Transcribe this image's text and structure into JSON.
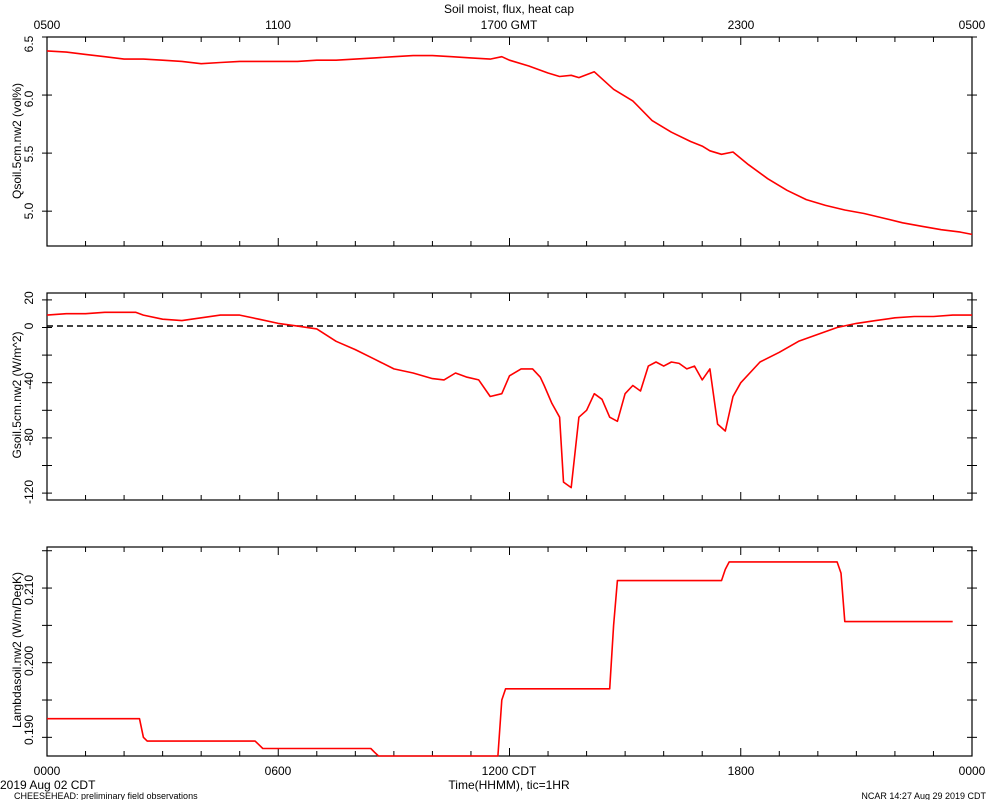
{
  "title": "Soil moist, flux, heat cap",
  "top_axis": {
    "tick_labels": [
      "0500",
      "1100",
      "1700 GMT",
      "2300",
      "0500"
    ]
  },
  "bottom_axis": {
    "tick_labels": [
      "0000",
      "0600",
      "1200 CDT",
      "1800",
      "0000"
    ],
    "xlabel": "Time(HHMM), tic=1HR"
  },
  "footer": {
    "date": "2019 Aug 02 CDT",
    "project": "CHEESEHEAD: preliminary field observations",
    "credit": "NCAR 14:27 Aug 29 2019 CDT"
  },
  "colors": {
    "series": "#ff0000",
    "axes": "#000000",
    "zero_line": "#000000"
  },
  "chart_data": [
    {
      "type": "line",
      "ylabel": "Qsoil.5cm.nw2 (vol%)",
      "ylim": [
        4.7,
        6.5
      ],
      "ytick_labels": [
        "5.0",
        "5.5",
        "6.0",
        "6.5"
      ],
      "xlim": [
        0,
        24
      ],
      "series": [
        {
          "x": [
            0,
            0.5,
            1,
            1.5,
            2,
            2.5,
            3,
            3.5,
            4,
            4.5,
            5,
            5.5,
            6,
            6.5,
            7,
            7.5,
            8,
            8.5,
            9,
            9.5,
            10,
            10.5,
            11,
            11.5,
            11.8,
            12,
            12.5,
            13,
            13.3,
            13.6,
            13.8,
            14.2,
            14.7,
            15.2,
            15.7,
            16.2,
            16.7,
            17,
            17.2,
            17.5,
            17.8,
            18.2,
            18.7,
            19.2,
            19.7,
            20.2,
            20.7,
            21.2,
            21.7,
            22.2,
            22.7,
            23.2,
            23.7,
            24
          ],
          "y": [
            6.38,
            6.37,
            6.35,
            6.33,
            6.31,
            6.31,
            6.3,
            6.29,
            6.27,
            6.28,
            6.29,
            6.29,
            6.29,
            6.29,
            6.3,
            6.3,
            6.31,
            6.32,
            6.33,
            6.34,
            6.34,
            6.33,
            6.32,
            6.31,
            6.33,
            6.3,
            6.25,
            6.19,
            6.16,
            6.17,
            6.15,
            6.2,
            6.05,
            5.95,
            5.78,
            5.68,
            5.6,
            5.56,
            5.52,
            5.49,
            5.51,
            5.4,
            5.28,
            5.18,
            5.1,
            5.05,
            5.01,
            4.98,
            4.94,
            4.9,
            4.87,
            4.84,
            4.82,
            4.8
          ]
        }
      ]
    },
    {
      "type": "line",
      "ylabel": "Gsoil.5cm.nw2 (W/m^2)",
      "ylim": [
        -125,
        25
      ],
      "ytick_labels": [
        "20",
        "0",
        "-40",
        "-80",
        "-120"
      ],
      "zero_line": true,
      "xlim": [
        0,
        24
      ],
      "series": [
        {
          "x": [
            0,
            0.5,
            1,
            1.5,
            2,
            2.3,
            2.5,
            3,
            3.5,
            4,
            4.5,
            5,
            5.5,
            6,
            6.5,
            7,
            7.5,
            8,
            8.5,
            9,
            9.5,
            10,
            10.3,
            10.6,
            10.9,
            11.2,
            11.5,
            11.8,
            12,
            12.3,
            12.6,
            12.8,
            12.9,
            13.1,
            13.3,
            13.4,
            13.6,
            13.8,
            14.0,
            14.2,
            14.4,
            14.6,
            14.8,
            15.0,
            15.2,
            15.4,
            15.6,
            15.8,
            16.0,
            16.2,
            16.4,
            16.6,
            16.8,
            17.0,
            17.2,
            17.4,
            17.6,
            17.8,
            18.0,
            18.5,
            19,
            19.5,
            20,
            20.5,
            21,
            21.5,
            22,
            22.5,
            23,
            23.5,
            24
          ],
          "y": [
            9,
            10,
            10,
            11,
            11,
            11,
            9,
            6,
            5,
            7,
            9,
            9,
            6,
            3,
            1,
            -1,
            -10,
            -16,
            -23,
            -30,
            -33,
            -37,
            -38,
            -33,
            -36,
            -38,
            -50,
            -48,
            -35,
            -30,
            -30,
            -36,
            -42,
            -55,
            -65,
            -112,
            -116,
            -65,
            -60,
            -48,
            -52,
            -65,
            -68,
            -48,
            -42,
            -46,
            -28,
            -25,
            -28,
            -25,
            -26,
            -30,
            -28,
            -38,
            -30,
            -70,
            -75,
            -50,
            -40,
            -25,
            -18,
            -10,
            -5,
            0,
            3,
            5,
            7,
            8,
            8,
            9,
            9
          ]
        }
      ]
    },
    {
      "type": "line",
      "ylabel": "Lambdasoil.nw2 (W/m/DegK)",
      "ylim": [
        0.1875,
        0.2155
      ],
      "ytick_labels": [
        "0.190",
        "0.200",
        "0.210"
      ],
      "xlim": [
        0,
        24
      ],
      "series": [
        {
          "x": [
            0,
            2.4,
            2.5,
            2.6,
            5.4,
            5.5,
            5.6,
            8.4,
            8.5,
            8.6,
            11.7,
            11.8,
            11.9,
            14.6,
            14.7,
            14.8,
            17.5,
            17.6,
            17.7,
            20.5,
            20.6,
            20.7,
            23.5
          ],
          "y": [
            0.1925,
            0.1925,
            0.19,
            0.1895,
            0.1895,
            0.189,
            0.1885,
            0.1885,
            0.188,
            0.1875,
            0.1875,
            0.195,
            0.1965,
            0.1965,
            0.205,
            0.211,
            0.211,
            0.2125,
            0.2135,
            0.2135,
            0.212,
            0.2055,
            0.2055
          ]
        }
      ]
    }
  ]
}
